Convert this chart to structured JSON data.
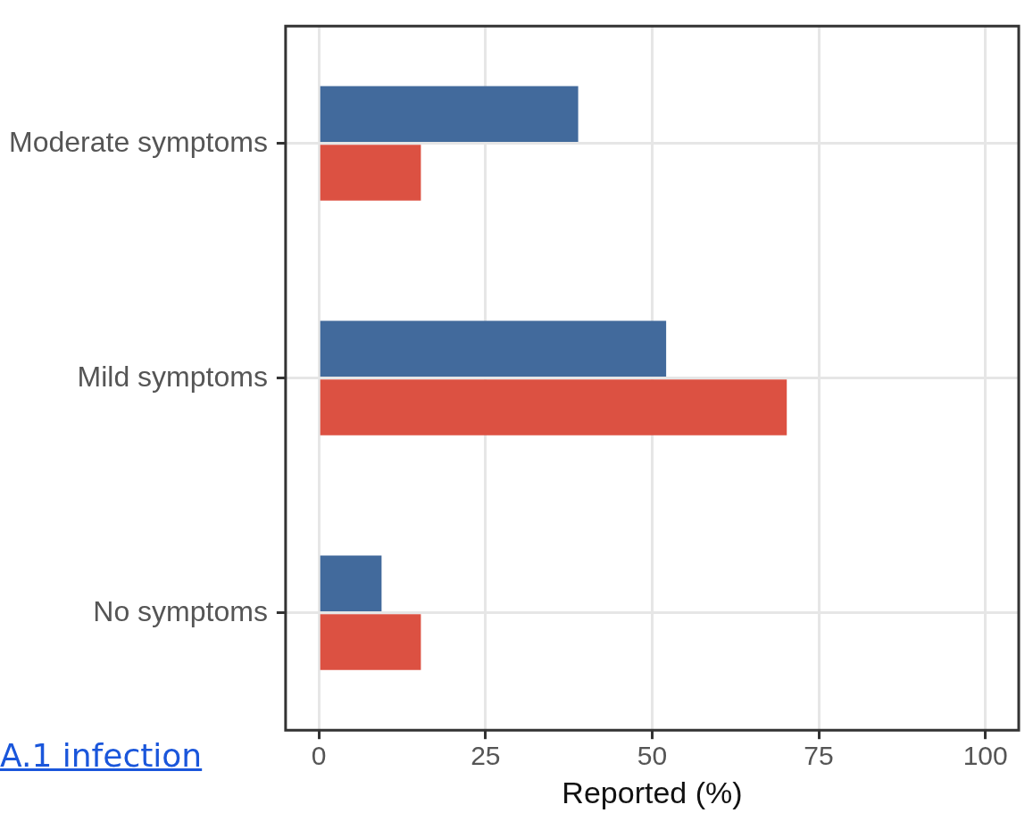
{
  "chart_data": {
    "type": "bar",
    "orientation": "horizontal",
    "xlabel": "Reported (%)",
    "categories": [
      "Moderate symptoms",
      "Mild symptoms",
      "No symptoms"
    ],
    "series": [
      {
        "color": "#426a9c",
        "values": [
          38.9,
          52.1,
          9.4
        ]
      },
      {
        "color": "#dc5142",
        "values": [
          15.3,
          70.2,
          15.3
        ]
      }
    ],
    "xlim": [
      -5,
      105
    ],
    "xticks": [
      0,
      25,
      50,
      75,
      100
    ],
    "grid": true,
    "legend": false,
    "annotations": [
      "A.1 infection"
    ]
  }
}
